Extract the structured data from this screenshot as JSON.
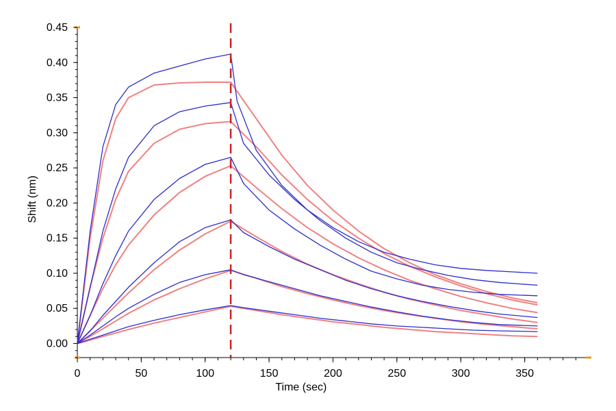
{
  "chart_data": {
    "type": "line",
    "title": "",
    "xlabel": "Time (sec)",
    "ylabel": "Shift (nm)",
    "xlim": [
      0,
      400
    ],
    "ylim": [
      -0.02,
      0.45
    ],
    "x_ticks": [
      0,
      50,
      100,
      150,
      200,
      250,
      300,
      350
    ],
    "y_ticks": [
      0.0,
      0.05,
      0.1,
      0.15,
      0.2,
      0.25,
      0.3,
      0.35,
      0.4,
      0.45
    ],
    "x_tick_labels": [
      "0",
      "50",
      "100",
      "150",
      "200",
      "250",
      "300",
      "350"
    ],
    "y_tick_labels": [
      "0.00",
      "0.05",
      "0.10",
      "0.15",
      "0.20",
      "0.25",
      "0.30",
      "0.35",
      "0.40",
      "0.45"
    ],
    "grid": false,
    "legend": "none",
    "dissociation_start": 120,
    "colors": {
      "measured": "#2b2bcc",
      "fit": "#f08080",
      "marker_line": "#cc2222",
      "axis_accent": "#e69a1a"
    },
    "series": [
      {
        "kind": "measured",
        "values": [
          [
            0,
            0.0
          ],
          [
            10,
            0.16
          ],
          [
            20,
            0.28
          ],
          [
            30,
            0.34
          ],
          [
            40,
            0.365
          ],
          [
            60,
            0.385
          ],
          [
            80,
            0.395
          ],
          [
            100,
            0.405
          ],
          [
            120,
            0.412
          ],
          [
            125,
            0.345
          ],
          [
            140,
            0.275
          ],
          [
            160,
            0.225
          ],
          [
            180,
            0.19
          ],
          [
            200,
            0.165
          ],
          [
            220,
            0.145
          ],
          [
            240,
            0.13
          ],
          [
            260,
            0.12
          ],
          [
            280,
            0.112
          ],
          [
            300,
            0.107
          ],
          [
            320,
            0.104
          ],
          [
            340,
            0.102
          ],
          [
            360,
            0.1
          ]
        ]
      },
      {
        "kind": "fit",
        "values": [
          [
            0,
            0.0
          ],
          [
            10,
            0.15
          ],
          [
            20,
            0.26
          ],
          [
            30,
            0.32
          ],
          [
            40,
            0.35
          ],
          [
            60,
            0.368
          ],
          [
            80,
            0.371
          ],
          [
            100,
            0.372
          ],
          [
            120,
            0.372
          ],
          [
            140,
            0.32
          ],
          [
            160,
            0.268
          ],
          [
            180,
            0.225
          ],
          [
            200,
            0.19
          ],
          [
            220,
            0.16
          ],
          [
            240,
            0.135
          ],
          [
            260,
            0.115
          ],
          [
            280,
            0.098
          ],
          [
            300,
            0.085
          ],
          [
            320,
            0.074
          ],
          [
            340,
            0.065
          ],
          [
            360,
            0.058
          ]
        ]
      },
      {
        "kind": "measured",
        "values": [
          [
            0,
            0.0
          ],
          [
            10,
            0.08
          ],
          [
            20,
            0.16
          ],
          [
            30,
            0.22
          ],
          [
            40,
            0.265
          ],
          [
            60,
            0.31
          ],
          [
            80,
            0.33
          ],
          [
            100,
            0.338
          ],
          [
            120,
            0.343
          ],
          [
            130,
            0.285
          ],
          [
            150,
            0.24
          ],
          [
            170,
            0.205
          ],
          [
            190,
            0.175
          ],
          [
            210,
            0.15
          ],
          [
            230,
            0.13
          ],
          [
            250,
            0.115
          ],
          [
            270,
            0.105
          ],
          [
            290,
            0.097
          ],
          [
            310,
            0.091
          ],
          [
            330,
            0.087
          ],
          [
            360,
            0.083
          ]
        ]
      },
      {
        "kind": "fit",
        "values": [
          [
            0,
            0.0
          ],
          [
            10,
            0.08
          ],
          [
            20,
            0.15
          ],
          [
            30,
            0.205
          ],
          [
            40,
            0.245
          ],
          [
            60,
            0.285
          ],
          [
            80,
            0.305
          ],
          [
            100,
            0.313
          ],
          [
            120,
            0.316
          ],
          [
            140,
            0.28
          ],
          [
            160,
            0.24
          ],
          [
            180,
            0.205
          ],
          [
            200,
            0.175
          ],
          [
            220,
            0.15
          ],
          [
            240,
            0.128
          ],
          [
            260,
            0.11
          ],
          [
            280,
            0.095
          ],
          [
            300,
            0.082
          ],
          [
            320,
            0.071
          ],
          [
            340,
            0.062
          ],
          [
            360,
            0.055
          ]
        ]
      },
      {
        "kind": "measured",
        "values": [
          [
            0,
            0.0
          ],
          [
            10,
            0.04
          ],
          [
            20,
            0.085
          ],
          [
            30,
            0.125
          ],
          [
            40,
            0.16
          ],
          [
            60,
            0.205
          ],
          [
            80,
            0.235
          ],
          [
            100,
            0.255
          ],
          [
            120,
            0.265
          ],
          [
            130,
            0.228
          ],
          [
            150,
            0.19
          ],
          [
            170,
            0.163
          ],
          [
            190,
            0.14
          ],
          [
            210,
            0.12
          ],
          [
            230,
            0.103
          ],
          [
            250,
            0.092
          ],
          [
            270,
            0.083
          ],
          [
            290,
            0.077
          ],
          [
            310,
            0.073
          ],
          [
            330,
            0.07
          ],
          [
            360,
            0.068
          ]
        ]
      },
      {
        "kind": "fit",
        "values": [
          [
            0,
            0.0
          ],
          [
            10,
            0.04
          ],
          [
            20,
            0.078
          ],
          [
            30,
            0.112
          ],
          [
            40,
            0.14
          ],
          [
            60,
            0.183
          ],
          [
            80,
            0.215
          ],
          [
            100,
            0.238
          ],
          [
            120,
            0.253
          ],
          [
            140,
            0.222
          ],
          [
            160,
            0.192
          ],
          [
            180,
            0.165
          ],
          [
            200,
            0.142
          ],
          [
            220,
            0.122
          ],
          [
            240,
            0.105
          ],
          [
            260,
            0.09
          ],
          [
            280,
            0.078
          ],
          [
            300,
            0.067
          ],
          [
            320,
            0.058
          ],
          [
            340,
            0.05
          ],
          [
            360,
            0.044
          ]
        ]
      },
      {
        "kind": "measured",
        "values": [
          [
            0,
            0.0
          ],
          [
            10,
            0.018
          ],
          [
            20,
            0.04
          ],
          [
            30,
            0.06
          ],
          [
            40,
            0.08
          ],
          [
            60,
            0.115
          ],
          [
            80,
            0.145
          ],
          [
            100,
            0.165
          ],
          [
            120,
            0.176
          ],
          [
            130,
            0.158
          ],
          [
            150,
            0.138
          ],
          [
            170,
            0.12
          ],
          [
            190,
            0.105
          ],
          [
            210,
            0.09
          ],
          [
            230,
            0.078
          ],
          [
            250,
            0.068
          ],
          [
            270,
            0.06
          ],
          [
            290,
            0.053
          ],
          [
            310,
            0.047
          ],
          [
            330,
            0.042
          ],
          [
            360,
            0.037
          ]
        ]
      },
      {
        "kind": "fit",
        "values": [
          [
            0,
            0.0
          ],
          [
            10,
            0.018
          ],
          [
            20,
            0.036
          ],
          [
            30,
            0.054
          ],
          [
            40,
            0.072
          ],
          [
            60,
            0.105
          ],
          [
            80,
            0.133
          ],
          [
            100,
            0.156
          ],
          [
            120,
            0.174
          ],
          [
            140,
            0.152
          ],
          [
            160,
            0.131
          ],
          [
            180,
            0.113
          ],
          [
            200,
            0.098
          ],
          [
            220,
            0.085
          ],
          [
            240,
            0.073
          ],
          [
            260,
            0.063
          ],
          [
            280,
            0.055
          ],
          [
            300,
            0.047
          ],
          [
            320,
            0.041
          ],
          [
            340,
            0.035
          ],
          [
            360,
            0.03
          ]
        ]
      },
      {
        "kind": "measured",
        "values": [
          [
            0,
            0.0
          ],
          [
            10,
            0.012
          ],
          [
            20,
            0.025
          ],
          [
            30,
            0.038
          ],
          [
            40,
            0.05
          ],
          [
            60,
            0.07
          ],
          [
            80,
            0.087
          ],
          [
            100,
            0.098
          ],
          [
            120,
            0.105
          ],
          [
            130,
            0.098
          ],
          [
            150,
            0.088
          ],
          [
            170,
            0.078
          ],
          [
            190,
            0.068
          ],
          [
            210,
            0.06
          ],
          [
            230,
            0.052
          ],
          [
            250,
            0.045
          ],
          [
            270,
            0.039
          ],
          [
            290,
            0.034
          ],
          [
            310,
            0.03
          ],
          [
            330,
            0.027
          ],
          [
            360,
            0.025
          ]
        ]
      },
      {
        "kind": "fit",
        "values": [
          [
            0,
            0.0
          ],
          [
            10,
            0.01
          ],
          [
            20,
            0.021
          ],
          [
            30,
            0.032
          ],
          [
            40,
            0.043
          ],
          [
            60,
            0.062
          ],
          [
            80,
            0.078
          ],
          [
            100,
            0.092
          ],
          [
            120,
            0.104
          ],
          [
            140,
            0.093
          ],
          [
            160,
            0.081
          ],
          [
            180,
            0.071
          ],
          [
            200,
            0.062
          ],
          [
            220,
            0.054
          ],
          [
            240,
            0.047
          ],
          [
            260,
            0.041
          ],
          [
            280,
            0.036
          ],
          [
            300,
            0.031
          ],
          [
            320,
            0.027
          ],
          [
            340,
            0.024
          ],
          [
            360,
            0.021
          ]
        ]
      },
      {
        "kind": "measured",
        "values": [
          [
            0,
            0.0
          ],
          [
            10,
            0.006
          ],
          [
            20,
            0.012
          ],
          [
            30,
            0.018
          ],
          [
            40,
            0.024
          ],
          [
            60,
            0.033
          ],
          [
            80,
            0.041
          ],
          [
            100,
            0.048
          ],
          [
            120,
            0.054
          ],
          [
            130,
            0.051
          ],
          [
            150,
            0.046
          ],
          [
            170,
            0.041
          ],
          [
            190,
            0.036
          ],
          [
            210,
            0.032
          ],
          [
            230,
            0.028
          ],
          [
            250,
            0.025
          ],
          [
            270,
            0.023
          ],
          [
            290,
            0.021
          ],
          [
            310,
            0.019
          ],
          [
            330,
            0.018
          ],
          [
            360,
            0.017
          ]
        ]
      },
      {
        "kind": "fit",
        "values": [
          [
            0,
            0.0
          ],
          [
            10,
            0.005
          ],
          [
            20,
            0.01
          ],
          [
            30,
            0.015
          ],
          [
            40,
            0.02
          ],
          [
            60,
            0.029
          ],
          [
            80,
            0.037
          ],
          [
            100,
            0.045
          ],
          [
            120,
            0.053
          ],
          [
            140,
            0.047
          ],
          [
            160,
            0.041
          ],
          [
            180,
            0.036
          ],
          [
            200,
            0.031
          ],
          [
            220,
            0.027
          ],
          [
            240,
            0.023
          ],
          [
            260,
            0.02
          ],
          [
            280,
            0.017
          ],
          [
            300,
            0.015
          ],
          [
            320,
            0.013
          ],
          [
            340,
            0.011
          ],
          [
            360,
            0.01
          ]
        ]
      }
    ]
  }
}
